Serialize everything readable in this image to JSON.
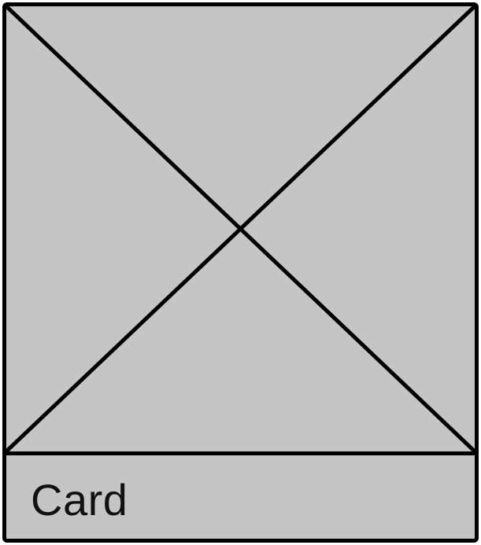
{
  "card": {
    "title": "Card",
    "image_icon": "image-placeholder-icon",
    "colors": {
      "background": "#c5c5c5",
      "border": "#000000",
      "text": "#111111"
    }
  }
}
